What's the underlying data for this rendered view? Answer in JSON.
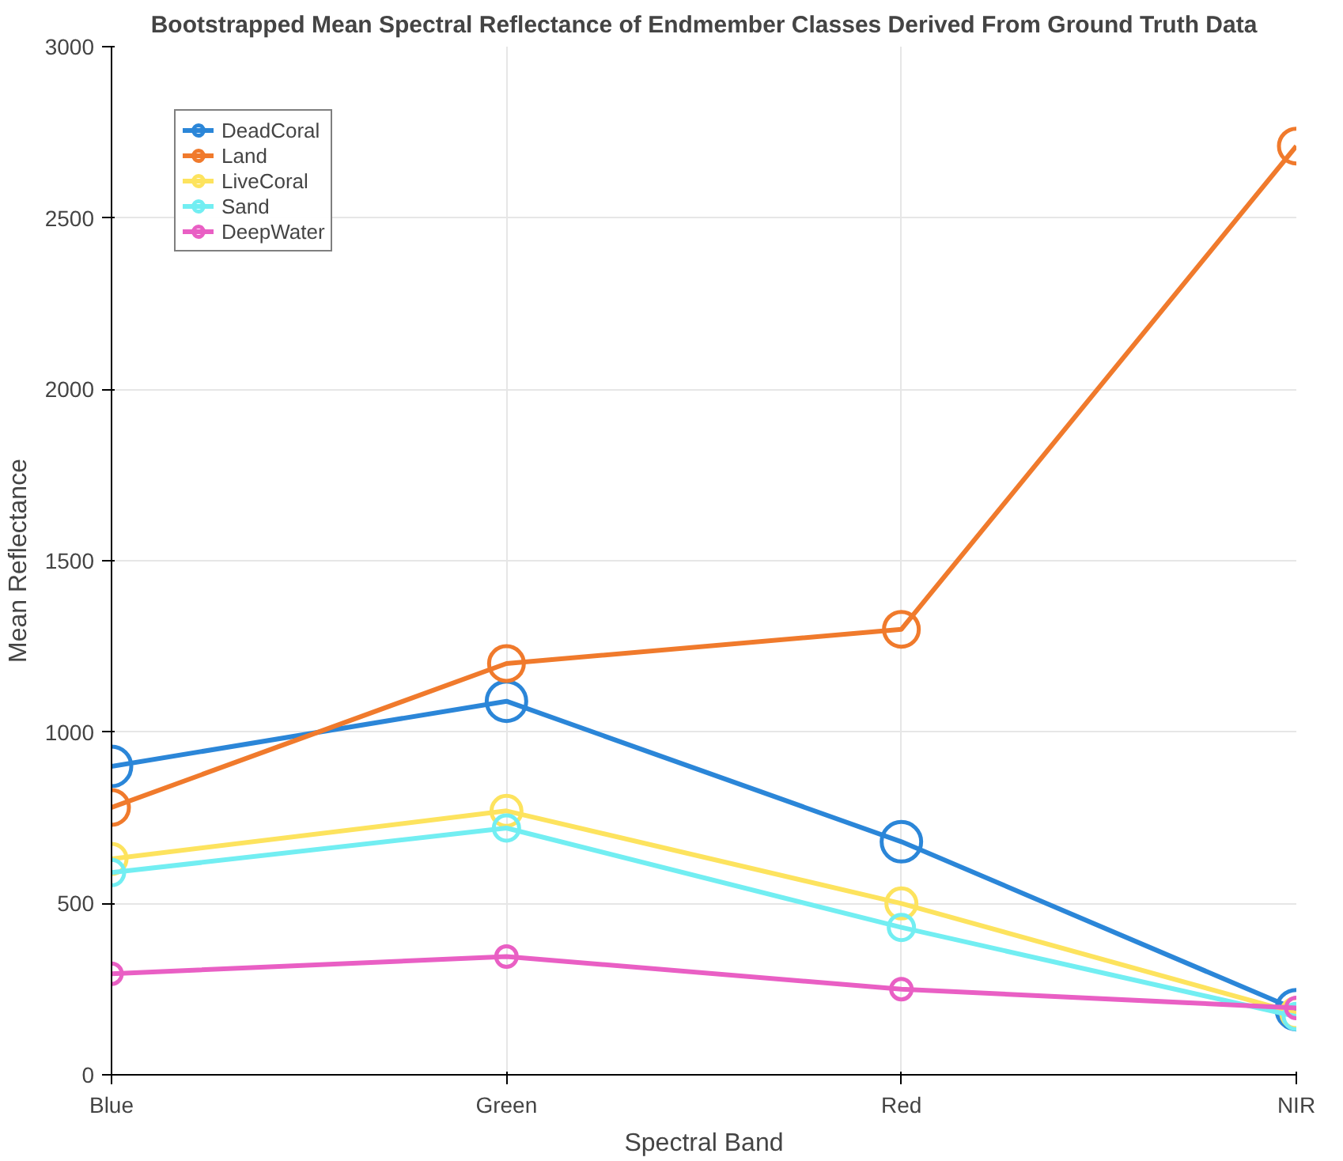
{
  "chart_data": {
    "type": "line",
    "title": "Bootstrapped Mean Spectral Reflectance of Endmember Classes Derived From Ground Truth Data",
    "xlabel": "Spectral Band",
    "ylabel": "Mean Reflectance",
    "categories": [
      "Blue",
      "Green",
      "Red",
      "NIR"
    ],
    "series": [
      {
        "name": "DeadCoral",
        "color": "#2b86d8",
        "values": [
          900,
          1090,
          680,
          190
        ]
      },
      {
        "name": "Land",
        "color": "#f07a2c",
        "values": [
          780,
          1200,
          1300,
          2710
        ]
      },
      {
        "name": "LiveCoral",
        "color": "#fde35e",
        "values": [
          630,
          770,
          500,
          180
        ]
      },
      {
        "name": "Sand",
        "color": "#72eef2",
        "values": [
          590,
          720,
          430,
          170
        ]
      },
      {
        "name": "DeepWater",
        "color": "#e95fc4",
        "values": [
          295,
          345,
          250,
          195
        ]
      }
    ],
    "ylim": [
      0,
      3000
    ],
    "yticks": [
      0,
      500,
      1000,
      1500,
      2000,
      2500,
      3000
    ],
    "grid": true,
    "legend": "top left",
    "marker": "circle",
    "line_style": "solid"
  }
}
